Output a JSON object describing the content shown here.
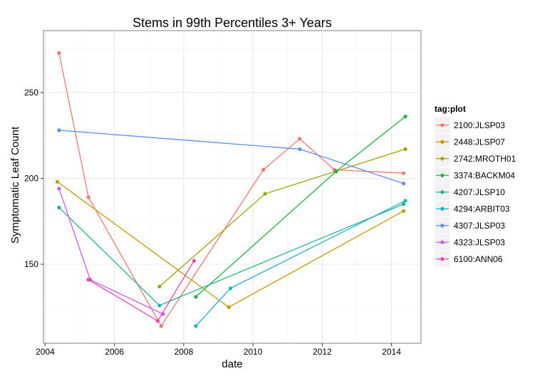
{
  "chart_data": {
    "type": "line",
    "title": "Stems in 99th Percentiles 3+ Years",
    "xlabel": "date",
    "ylabel": "Symptomatic Leaf Count",
    "xlim": [
      2003.95,
      2014.85
    ],
    "ylim": [
      104,
      286
    ],
    "x_ticks": [
      2004,
      2006,
      2008,
      2010,
      2012,
      2014
    ],
    "y_ticks": [
      150,
      200,
      250
    ],
    "grid": true,
    "legend": {
      "title": "tag:plot",
      "position": "right"
    },
    "series": [
      {
        "name": "2100:JLSP03",
        "color": "#F8766D",
        "points": [
          [
            2004.4,
            273
          ],
          [
            2005.25,
            189
          ],
          [
            2007.35,
            114
          ],
          [
            2010.3,
            205
          ],
          [
            2011.35,
            223
          ],
          [
            2012.35,
            205
          ],
          [
            2014.35,
            203
          ]
        ]
      },
      {
        "name": "2448:JLSP07",
        "color": "#C49A00",
        "points": [
          [
            2004.35,
            198
          ],
          [
            2009.3,
            125
          ],
          [
            2014.35,
            181
          ]
        ]
      },
      {
        "name": "2742:MROTH01",
        "color": "#99A800",
        "points": [
          [
            2007.3,
            137
          ],
          [
            2010.35,
            191
          ],
          [
            2014.4,
            217
          ]
        ]
      },
      {
        "name": "3374:BACKM04",
        "color": "#1FB33D",
        "points": [
          [
            2008.35,
            131
          ],
          [
            2012.4,
            204
          ],
          [
            2014.4,
            236
          ]
        ]
      },
      {
        "name": "4207:JLSP10",
        "color": "#1FB591",
        "points": [
          [
            2004.4,
            183
          ],
          [
            2007.3,
            126
          ],
          [
            2014.35,
            185
          ]
        ]
      },
      {
        "name": "4294:ARBIT03",
        "color": "#1AAFCF",
        "points": [
          [
            2008.35,
            114
          ],
          [
            2009.35,
            136
          ],
          [
            2014.4,
            187
          ]
        ]
      },
      {
        "name": "4307:JLSP03",
        "color": "#5D8EF5",
        "points": [
          [
            2004.4,
            228
          ],
          [
            2011.35,
            217
          ],
          [
            2014.35,
            197
          ]
        ]
      },
      {
        "name": "4323:JLSP03",
        "color": "#CF55ED",
        "points": [
          [
            2004.4,
            194
          ],
          [
            2005.3,
            141
          ],
          [
            2007.4,
            121
          ]
        ]
      },
      {
        "name": "6100:ANN06",
        "color": "#F23FB4",
        "points": [
          [
            2005.25,
            141
          ],
          [
            2007.25,
            117
          ],
          [
            2008.3,
            152
          ]
        ]
      }
    ]
  }
}
